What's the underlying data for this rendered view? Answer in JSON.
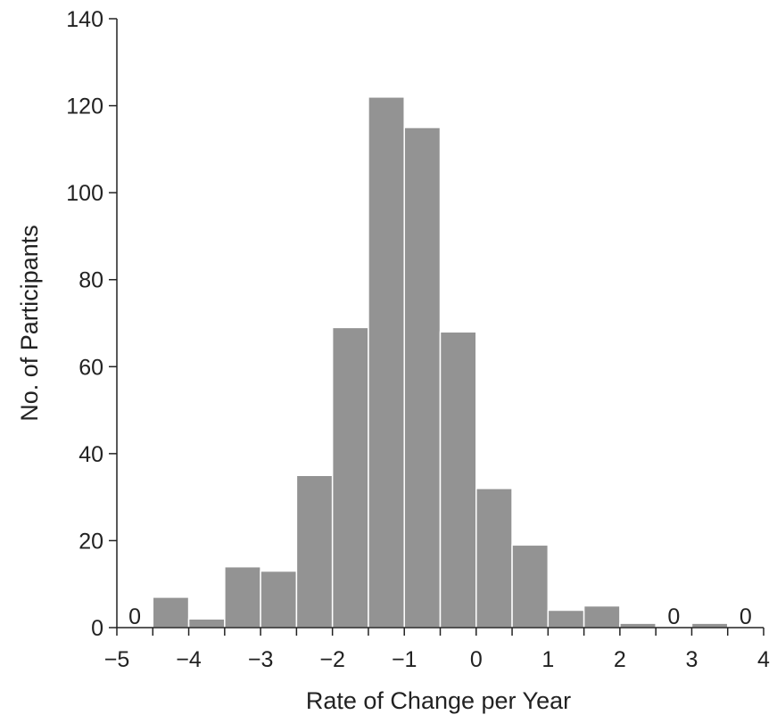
{
  "chart_data": {
    "type": "bar",
    "title": "",
    "xlabel": "Rate of Change per Year",
    "ylabel": "No. of Participants",
    "xlim": [
      -5,
      4
    ],
    "ylim": [
      0,
      140
    ],
    "x_ticks": [
      -5,
      -4,
      -3,
      -2,
      -1,
      0,
      1,
      2,
      3,
      4
    ],
    "x_tick_labels": [
      "−5",
      "−4",
      "−3",
      "−2",
      "−1",
      "0",
      "1",
      "2",
      "3",
      "4"
    ],
    "y_ticks": [
      0,
      20,
      40,
      60,
      80,
      100,
      120,
      140
    ],
    "y_tick_labels": [
      "0",
      "20",
      "40",
      "60",
      "80",
      "100",
      "120",
      "140"
    ],
    "bin_width": 0.5,
    "bins": [
      {
        "start": -5.0,
        "value": 0,
        "label": "0"
      },
      {
        "start": -4.5,
        "value": 7
      },
      {
        "start": -4.0,
        "value": 2
      },
      {
        "start": -3.5,
        "value": 14
      },
      {
        "start": -3.0,
        "value": 13
      },
      {
        "start": -2.5,
        "value": 35
      },
      {
        "start": -2.0,
        "value": 69
      },
      {
        "start": -1.5,
        "value": 122
      },
      {
        "start": -1.0,
        "value": 115
      },
      {
        "start": -0.5,
        "value": 68
      },
      {
        "start": 0.0,
        "value": 32
      },
      {
        "start": 0.5,
        "value": 19
      },
      {
        "start": 1.0,
        "value": 4
      },
      {
        "start": 1.5,
        "value": 5
      },
      {
        "start": 2.0,
        "value": 1
      },
      {
        "start": 2.5,
        "value": 0,
        "label": "0"
      },
      {
        "start": 3.0,
        "value": 1
      },
      {
        "start": 3.5,
        "value": 0,
        "label": "0"
      }
    ],
    "grid": false,
    "colors": {
      "bar": "#939393",
      "axis": "#222222"
    }
  }
}
